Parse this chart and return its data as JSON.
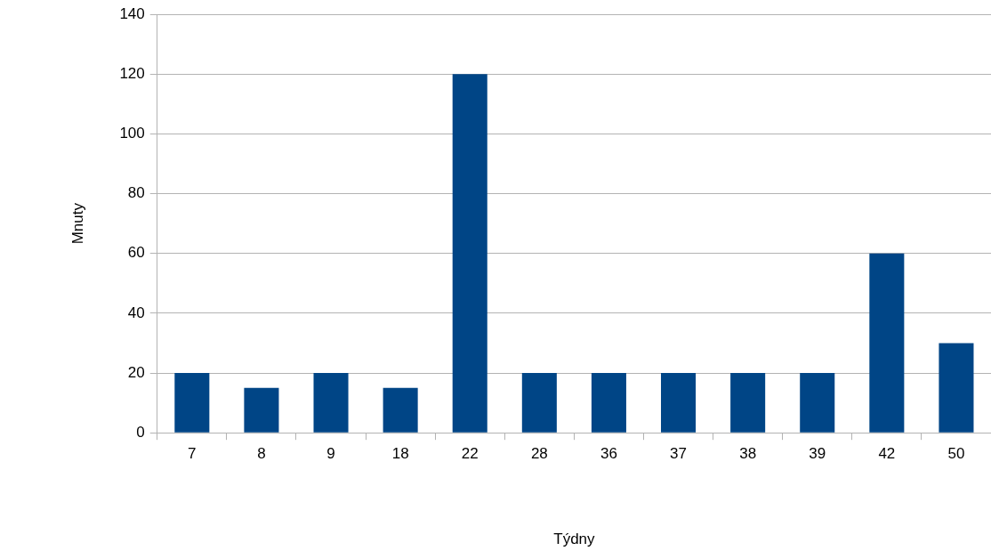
{
  "chart_data": {
    "type": "bar",
    "xlabel": "Týdny",
    "ylabel": "Mnuty",
    "categories": [
      "7",
      "8",
      "9",
      "18",
      "22",
      "28",
      "36",
      "37",
      "38",
      "39",
      "42",
      "50"
    ],
    "values": [
      20,
      15,
      20,
      15,
      120,
      20,
      20,
      20,
      20,
      20,
      60,
      30
    ],
    "color": "#004586",
    "ylim": [
      0,
      140
    ],
    "yticks": [
      0,
      20,
      40,
      60,
      80,
      100,
      120,
      140
    ],
    "grid": "y",
    "legend": false
  }
}
